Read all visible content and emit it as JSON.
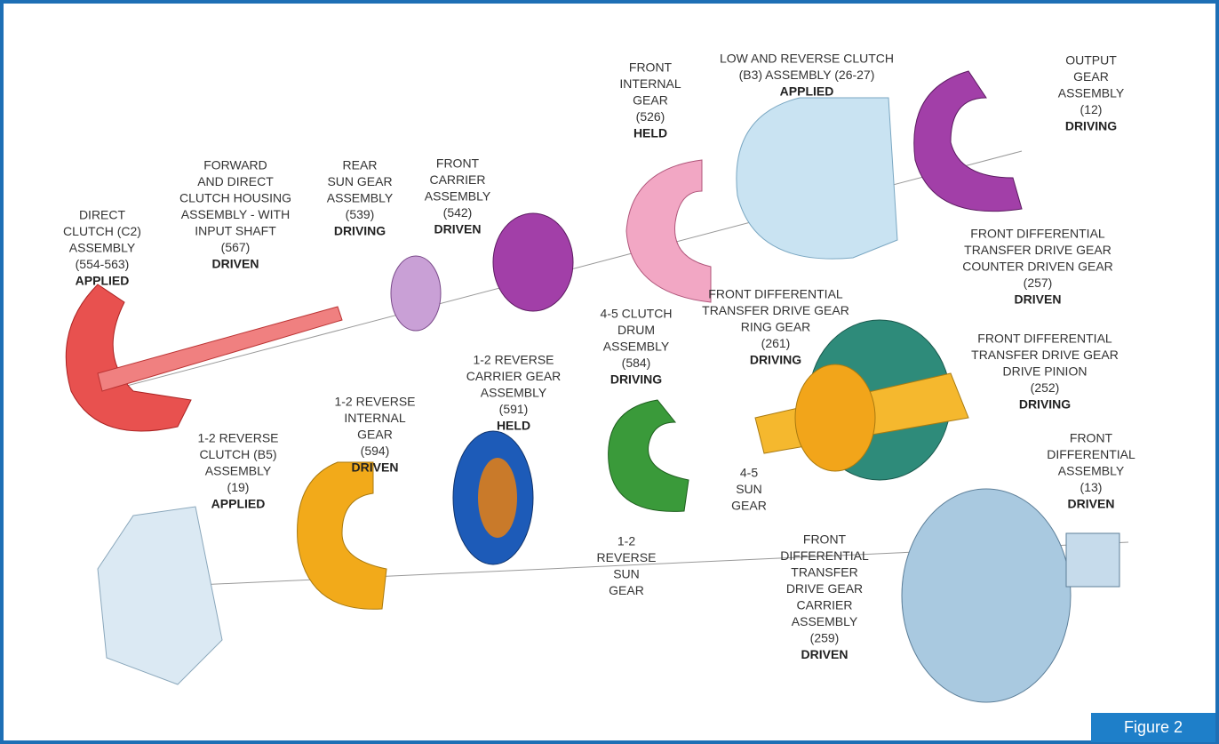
{
  "labels": [
    {
      "lines": [
        "DIRECT",
        "CLUTCH (C2)",
        "ASSEMBLY",
        "(554-563)"
      ],
      "status": "APPLIED"
    },
    {
      "lines": [
        "FORWARD",
        "AND DIRECT",
        "CLUTCH HOUSING",
        "ASSEMBLY - WITH",
        "INPUT SHAFT",
        "(567)"
      ],
      "status": "DRIVEN"
    },
    {
      "lines": [
        "REAR",
        "SUN GEAR",
        "ASSEMBLY",
        "(539)"
      ],
      "status": "DRIVING"
    },
    {
      "lines": [
        "FRONT",
        "CARRIER",
        "ASSEMBLY",
        "(542)"
      ],
      "status": "DRIVEN"
    },
    {
      "lines": [
        "FRONT",
        "INTERNAL",
        "GEAR",
        "(526)"
      ],
      "status": "HELD"
    },
    {
      "lines": [
        "LOW AND REVERSE CLUTCH",
        "(B3) ASSEMBLY (26-27)"
      ],
      "status": "APPLIED"
    },
    {
      "lines": [
        "OUTPUT",
        "GEAR",
        "ASSEMBLY",
        "(12)"
      ],
      "status": "DRIVING"
    },
    {
      "lines": [
        "FRONT DIFFERENTIAL",
        "TRANSFER DRIVE GEAR",
        "COUNTER DRIVEN GEAR",
        "(257)"
      ],
      "status": "DRIVEN"
    },
    {
      "lines": [
        "FRONT DIFFERENTIAL",
        "TRANSFER DRIVE GEAR",
        "RING GEAR",
        "(261)"
      ],
      "status": "DRIVING"
    },
    {
      "lines": [
        "4-5 CLUTCH",
        "DRUM",
        "ASSEMBLY",
        "(584)"
      ],
      "status": "DRIVING"
    },
    {
      "lines": [
        "1-2 REVERSE",
        "CARRIER GEAR",
        "ASSEMBLY",
        "(591)"
      ],
      "status": "HELD"
    },
    {
      "lines": [
        "FRONT DIFFERENTIAL",
        "TRANSFER DRIVE GEAR",
        "DRIVE PINION",
        "(252)"
      ],
      "status": "DRIVING"
    },
    {
      "lines": [
        "1-2 REVERSE",
        "INTERNAL",
        "GEAR",
        "(594)"
      ],
      "status": "DRIVEN"
    },
    {
      "lines": [
        "1-2 REVERSE",
        "CLUTCH (B5)",
        "ASSEMBLY",
        "(19)"
      ],
      "status": "APPLIED"
    },
    {
      "lines": [
        "4-5",
        "SUN",
        "GEAR"
      ]
    },
    {
      "lines": [
        "1-2",
        "REVERSE",
        "SUN",
        "GEAR"
      ]
    },
    {
      "lines": [
        "FRONT",
        "DIFFERENTIAL",
        "TRANSFER",
        "DRIVE GEAR",
        "CARRIER",
        "ASSEMBLY",
        "(259)"
      ],
      "status": "DRIVEN"
    },
    {
      "lines": [
        "FRONT",
        "DIFFERENTIAL",
        "ASSEMBLY",
        "(13)"
      ],
      "status": "DRIVEN"
    }
  ],
  "figure_label": "Figure 2"
}
